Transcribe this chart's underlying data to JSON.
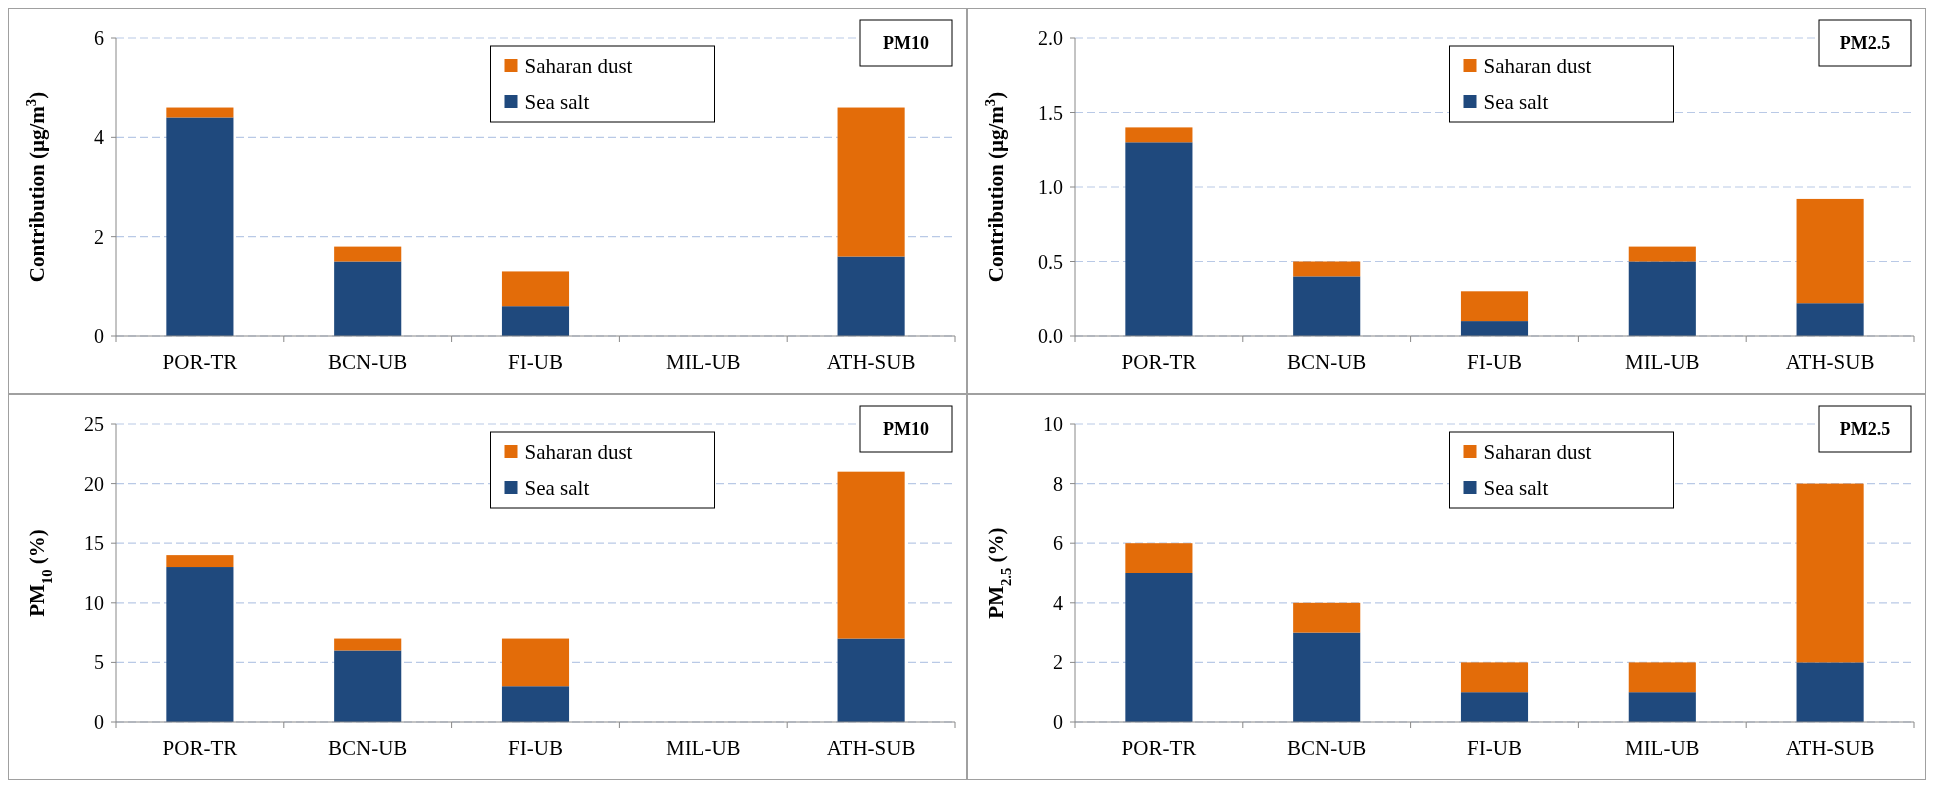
{
  "chart_data": [
    {
      "type": "bar",
      "title": "PM10",
      "ylabel": "Contribution (µg/m$^{3}$)",
      "categories": [
        "POR-TR",
        "BCN-UB",
        "FI-UB",
        "MIL-UB",
        "ATH-SUB"
      ],
      "stacked": true,
      "ylim": [
        0,
        6
      ],
      "yticks": [
        0,
        2,
        4,
        6
      ],
      "grid": "y",
      "legend": "top",
      "series": [
        {
          "name": "Sea salt",
          "color": "#1f497d",
          "values": [
            4.4,
            1.5,
            0.6,
            null,
            1.6
          ]
        },
        {
          "name": "Saharan dust",
          "color": "#e36c09",
          "values": [
            0.2,
            0.3,
            0.7,
            null,
            3.0
          ]
        }
      ]
    },
    {
      "type": "bar",
      "title": "PM2.5",
      "ylabel": "Contribution (µg/m$^{3}$)",
      "categories": [
        "POR-TR",
        "BCN-UB",
        "FI-UB",
        "MIL-UB",
        "ATH-SUB"
      ],
      "stacked": true,
      "ylim": [
        0,
        2
      ],
      "yticks": [
        {
          "value": 0,
          "label": "0.0"
        },
        {
          "value": 0.5,
          "label": "0.5"
        },
        {
          "value": 1,
          "label": "1.0"
        },
        {
          "value": 1.5,
          "label": "1.5"
        },
        {
          "value": 2,
          "label": "2.0"
        }
      ],
      "grid": "y",
      "legend": "top",
      "series": [
        {
          "name": "Sea salt",
          "color": "#1f497d",
          "values": [
            1.3,
            0.4,
            0.1,
            0.5,
            0.22
          ]
        },
        {
          "name": "Saharan dust",
          "color": "#e36c09",
          "values": [
            0.1,
            0.1,
            0.2,
            0.1,
            0.7
          ]
        }
      ]
    },
    {
      "type": "bar",
      "title": "PM10",
      "ylabel": "PM$_{10}$ (%)",
      "categories": [
        "POR-TR",
        "BCN-UB",
        "FI-UB",
        "MIL-UB",
        "ATH-SUB"
      ],
      "stacked": true,
      "ylim": [
        0,
        25
      ],
      "yticks": [
        0,
        5,
        10,
        15,
        20,
        25
      ],
      "grid": "y",
      "legend": "top",
      "series": [
        {
          "name": "Sea salt",
          "color": "#1f497d",
          "values": [
            13,
            6,
            3,
            null,
            7
          ]
        },
        {
          "name": "Saharan dust",
          "color": "#e36c09",
          "values": [
            1,
            1,
            4,
            null,
            14
          ]
        }
      ]
    },
    {
      "type": "bar",
      "title": "PM2.5",
      "ylabel": "PM$_{2.5}$ (%)",
      "categories": [
        "POR-TR",
        "BCN-UB",
        "FI-UB",
        "MIL-UB",
        "ATH-SUB"
      ],
      "stacked": true,
      "ylim": [
        0,
        10
      ],
      "yticks": [
        0,
        2,
        4,
        6,
        8,
        10
      ],
      "grid": "y",
      "legend": "top",
      "series": [
        {
          "name": "Sea salt",
          "color": "#1f497d",
          "values": [
            5,
            3,
            1,
            1,
            2
          ]
        },
        {
          "name": "Saharan dust",
          "color": "#e36c09",
          "values": [
            1,
            1,
            1,
            1,
            6
          ]
        }
      ]
    }
  ]
}
